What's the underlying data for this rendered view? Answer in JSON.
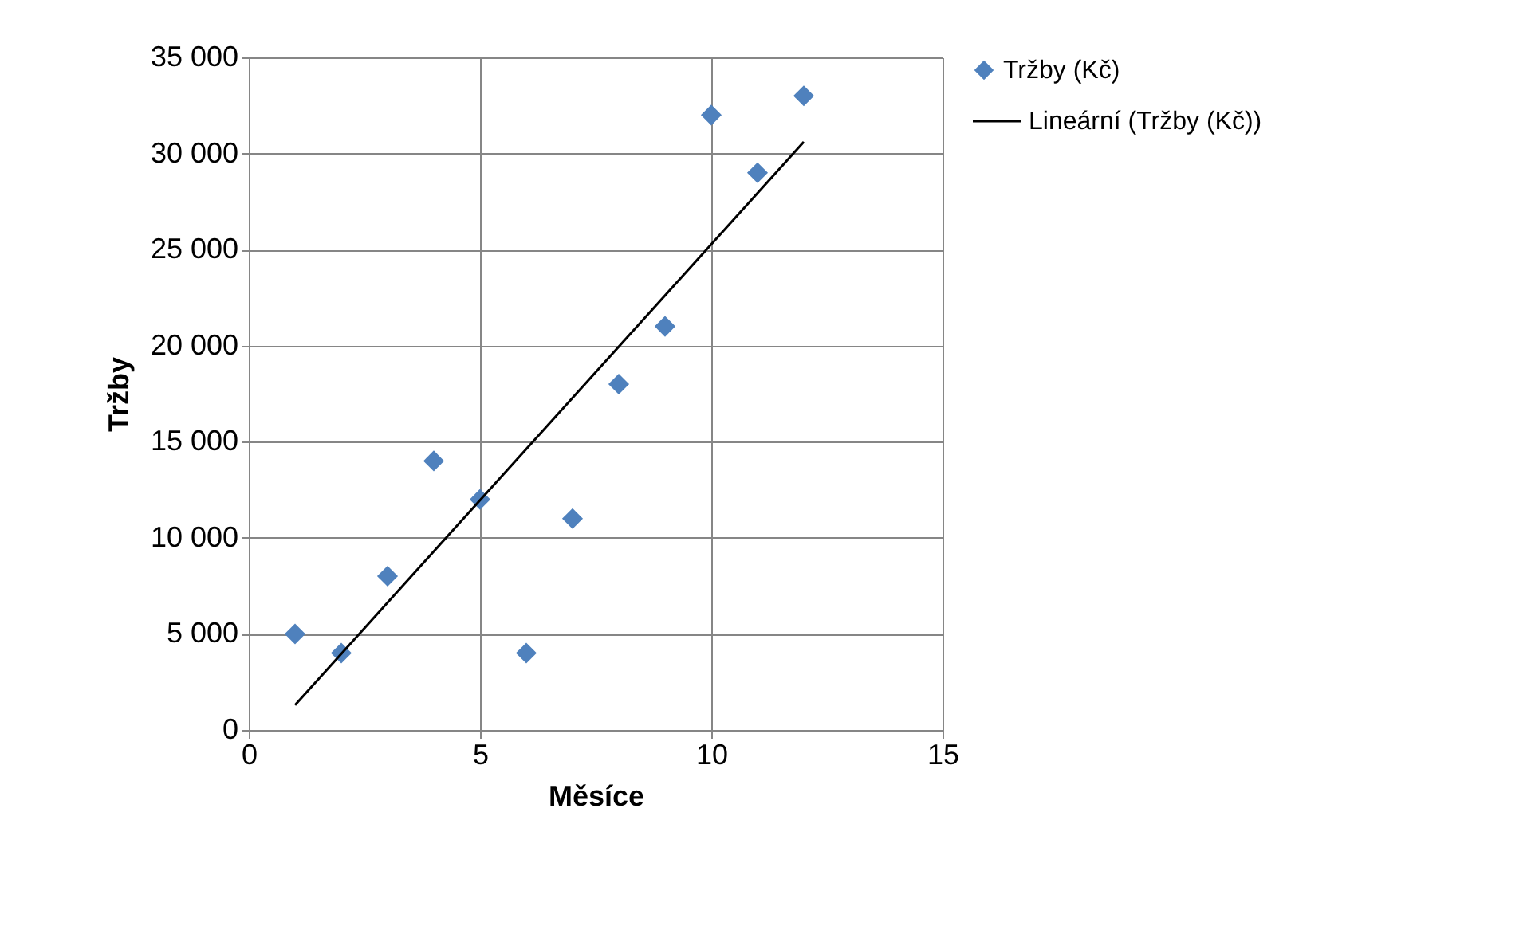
{
  "chart_data": {
    "type": "scatter",
    "xlabel": "Měsíce",
    "ylabel": "Tržby",
    "xlim": [
      0,
      15
    ],
    "xticks": [
      0,
      5,
      10,
      15
    ],
    "ylim": [
      0,
      35000
    ],
    "yticks": [
      0,
      {
        "value": 5000,
        "label": "5 000"
      },
      {
        "value": 10000,
        "label": "10 000"
      },
      {
        "value": 15000,
        "label": "15 000"
      },
      {
        "value": 20000,
        "label": "20 000"
      },
      {
        "value": 25000,
        "label": "25 000"
      },
      {
        "value": 30000,
        "label": "30 000"
      },
      {
        "value": 35000,
        "label": "35 000"
      }
    ],
    "grid": true,
    "legend": "right",
    "marker": "diamond",
    "series": [
      {
        "name": "Tržby (Kč)",
        "color": "#4f81bd",
        "x": [
          1,
          2,
          3,
          4,
          5,
          6,
          7,
          8,
          9,
          10,
          11,
          12
        ],
        "values": [
          5000,
          4000,
          8000,
          14000,
          12000,
          4000,
          11000,
          18000,
          21000,
          32000,
          29000,
          33000
        ]
      },
      {
        "name": "Lineární (Tržby (Kč))",
        "color": "#000000",
        "type": "line",
        "marker": "none",
        "line_style": "solid",
        "x": [
          1,
          12
        ],
        "values": [
          1300,
          30600
        ]
      }
    ]
  }
}
